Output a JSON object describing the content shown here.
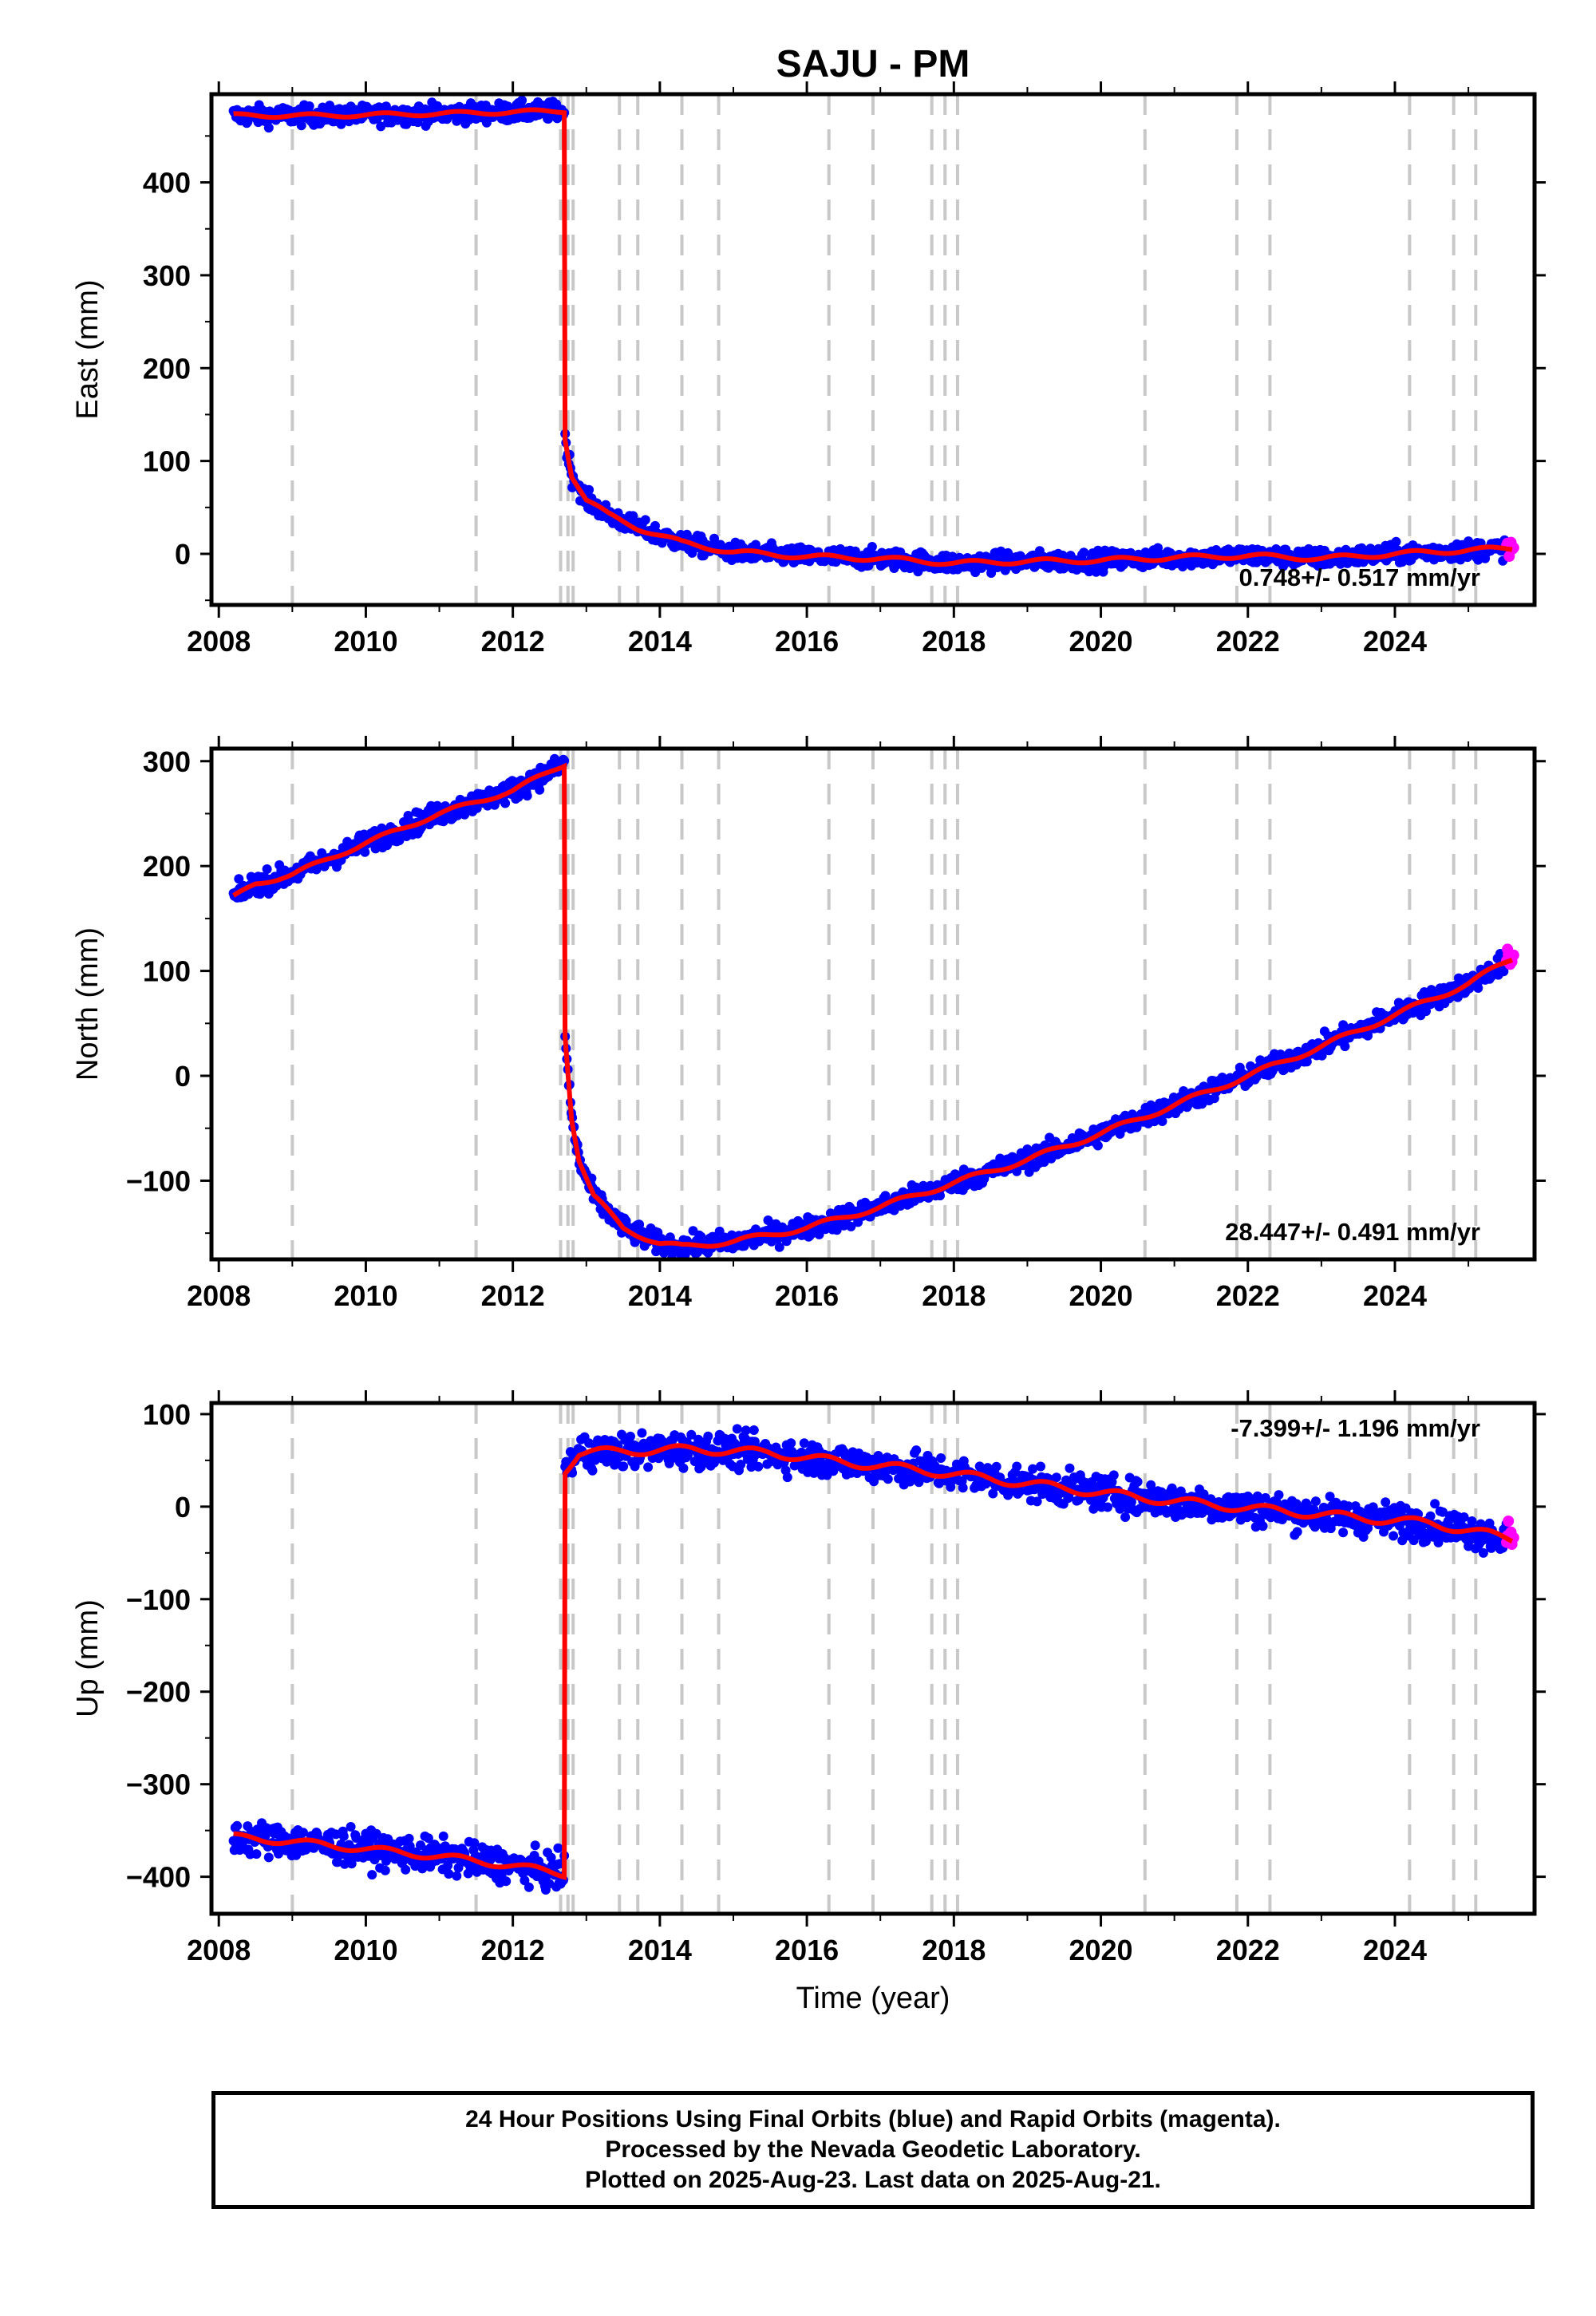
{
  "chart_data": {
    "type": "scatter",
    "title": "SAJU - PM",
    "xlabel": "Time (year)",
    "x_ticks": [
      2008,
      2010,
      2012,
      2014,
      2016,
      2018,
      2020,
      2022,
      2024
    ],
    "xlim": [
      2007.9,
      2025.9
    ],
    "event_lines": [
      2009.0,
      2011.5,
      2012.65,
      2012.75,
      2012.82,
      2013.45,
      2013.7,
      2014.3,
      2014.8,
      2016.3,
      2016.9,
      2017.7,
      2017.88,
      2018.05,
      2020.6,
      2021.85,
      2022.3,
      2024.2,
      2024.8,
      2025.1
    ],
    "colors": {
      "final": "#0000ff",
      "rapid": "#ff00ff",
      "model": "#ff0000",
      "event": "#c8c8c8"
    },
    "series_legend": {
      "final": "24 Hour Positions Using Final Orbits (blue)",
      "rapid": "Rapid Orbits (magenta)"
    },
    "panels": [
      {
        "ylabel": "East (mm)",
        "ylim": [
          -55,
          495
        ],
        "y_ticks": [
          0,
          100,
          200,
          300,
          400
        ],
        "rate_label": "0.748+/- 0.517 mm/yr",
        "rate_position": "bottom-right",
        "model_keypoints": [
          [
            2008.2,
            472
          ],
          [
            2009.5,
            472
          ],
          [
            2011,
            474
          ],
          [
            2012.7,
            477
          ],
          [
            2012.71,
            125
          ],
          [
            2012.8,
            85
          ],
          [
            2013.0,
            58
          ],
          [
            2013.3,
            42
          ],
          [
            2013.7,
            28
          ],
          [
            2014.3,
            12
          ],
          [
            2015,
            2
          ],
          [
            2016,
            -3
          ],
          [
            2017,
            -5
          ],
          [
            2018,
            -10
          ],
          [
            2019,
            -8
          ],
          [
            2020,
            -7
          ],
          [
            2021,
            -4
          ],
          [
            2022,
            -2
          ],
          [
            2023,
            -5
          ],
          [
            2024,
            0
          ],
          [
            2025,
            4
          ],
          [
            2025.6,
            6
          ]
        ],
        "noise": 5
      },
      {
        "ylabel": "North (mm)",
        "ylim": [
          -175,
          312
        ],
        "y_ticks": [
          -100,
          0,
          100,
          200,
          300
        ],
        "rate_label": "28.447+/- 0.491 mm/yr",
        "rate_position": "bottom-right",
        "model_keypoints": [
          [
            2008.2,
            170
          ],
          [
            2008.5,
            183
          ],
          [
            2009,
            192
          ],
          [
            2010,
            222
          ],
          [
            2011,
            250
          ],
          [
            2012,
            272
          ],
          [
            2012.7,
            297
          ],
          [
            2012.71,
            40
          ],
          [
            2012.8,
            -40
          ],
          [
            2012.9,
            -80
          ],
          [
            2013.1,
            -115
          ],
          [
            2013.5,
            -145
          ],
          [
            2014.0,
            -160
          ],
          [
            2014.3,
            -163
          ],
          [
            2015,
            -158
          ],
          [
            2016,
            -145
          ],
          [
            2017,
            -125
          ],
          [
            2018,
            -102
          ],
          [
            2019,
            -80
          ],
          [
            2020,
            -55
          ],
          [
            2021,
            -28
          ],
          [
            2022,
            0
          ],
          [
            2023,
            28
          ],
          [
            2024,
            58
          ],
          [
            2025,
            88
          ],
          [
            2025.6,
            112
          ]
        ],
        "noise": 5
      },
      {
        "ylabel": "Up (mm)",
        "ylim": [
          -440,
          112
        ],
        "y_ticks": [
          -400,
          -300,
          -200,
          -100,
          0,
          100
        ],
        "rate_label": "-7.399+/- 1.196 mm/yr",
        "rate_position": "top-right",
        "model_keypoints": [
          [
            2008.2,
            -357
          ],
          [
            2009,
            -362
          ],
          [
            2010,
            -370
          ],
          [
            2011,
            -378
          ],
          [
            2012,
            -388
          ],
          [
            2012.7,
            -397
          ],
          [
            2012.71,
            40
          ],
          [
            2012.9,
            58
          ],
          [
            2013.5,
            60
          ],
          [
            2014.5,
            62
          ],
          [
            2015.5,
            58
          ],
          [
            2016.5,
            48
          ],
          [
            2017.5,
            40
          ],
          [
            2018.5,
            30
          ],
          [
            2019.5,
            20
          ],
          [
            2020.5,
            10
          ],
          [
            2021.5,
            2
          ],
          [
            2022.5,
            -5
          ],
          [
            2023.5,
            -12
          ],
          [
            2024.5,
            -18
          ],
          [
            2025.6,
            -35
          ]
        ],
        "noise": 9
      }
    ]
  },
  "footer": {
    "line1": "24 Hour Positions Using Final Orbits (blue) and Rapid Orbits (magenta).",
    "line2": "Processed by the Nevada Geodetic Laboratory.",
    "line3": "Plotted on 2025-Aug-23. Last data on 2025-Aug-21."
  }
}
